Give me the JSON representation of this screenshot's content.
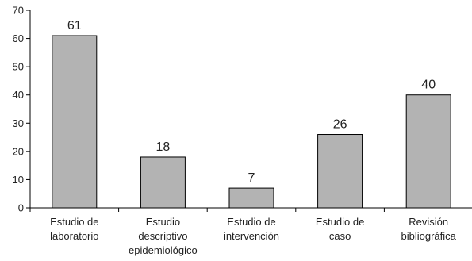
{
  "chart_data": {
    "type": "bar",
    "categories": [
      [
        "Estudio de",
        "laboratorio"
      ],
      [
        "Estudio",
        "descriptivo",
        "epidemiológico"
      ],
      [
        "Estudio de",
        "intervención"
      ],
      [
        "Estudio de",
        "caso"
      ],
      [
        "Revisión",
        "bibliográfica"
      ]
    ],
    "values": [
      61,
      18,
      7,
      26,
      40
    ],
    "ylim": [
      0,
      70
    ],
    "yticks": [
      0,
      10,
      20,
      30,
      40,
      50,
      60,
      70
    ],
    "grid": false,
    "bar_color": "#b3b3b3",
    "bar_edge_color": "#000000"
  }
}
